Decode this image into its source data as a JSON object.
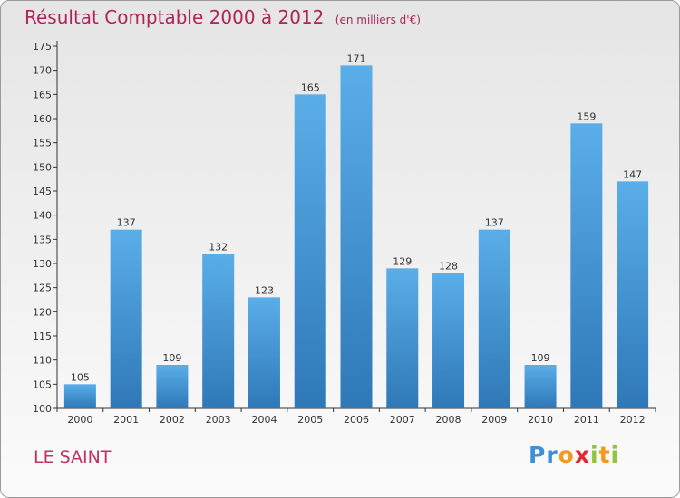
{
  "chart_data": {
    "type": "bar",
    "title": "Résultat Comptable 2000 à 2012",
    "subtitle": "(en milliers d'€)",
    "categories": [
      "2000",
      "2001",
      "2002",
      "2003",
      "2004",
      "2005",
      "2006",
      "2007",
      "2008",
      "2009",
      "2010",
      "2011",
      "2012"
    ],
    "values": [
      105,
      137,
      109,
      132,
      123,
      165,
      171,
      129,
      128,
      137,
      109,
      159,
      147
    ],
    "ylim": [
      100,
      175
    ],
    "yticks": [
      100,
      105,
      110,
      115,
      120,
      125,
      130,
      135,
      140,
      145,
      150,
      155,
      160,
      165,
      170,
      175
    ],
    "grid": false,
    "xlabel": "",
    "ylabel": ""
  },
  "location": "LE SAINT",
  "logo": {
    "letters": [
      "P",
      "r",
      "o",
      "x",
      "i",
      "t",
      "i"
    ],
    "colors": [
      "#3f8fd6",
      "#3f8fd6",
      "#f29a1d",
      "#e2282e",
      "#8ec63f",
      "#f29a1d",
      "#8ec63f"
    ]
  },
  "colors": {
    "bar_top": "#5aaee8",
    "bar_bottom": "#2f78b8",
    "title": "#b0245a"
  }
}
